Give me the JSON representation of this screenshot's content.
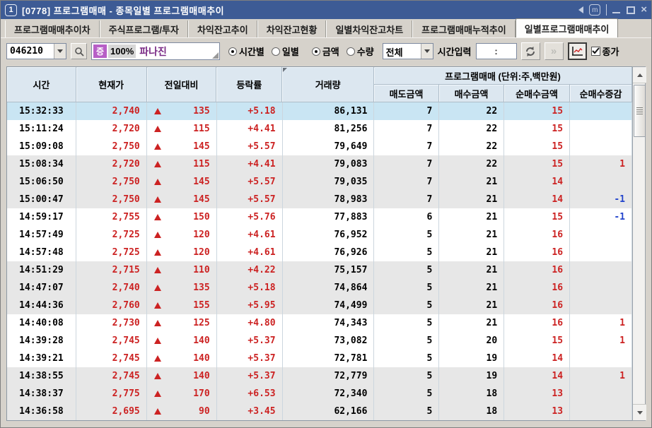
{
  "window": {
    "icon_label": "1",
    "title": "[0778] 프로그램매매 - 종목일별 프로그램매매추이"
  },
  "tabs": [
    {
      "label": "프로그램매매추이차",
      "active": false
    },
    {
      "label": "주식프로그램/투자",
      "active": false
    },
    {
      "label": "차익잔고추이",
      "active": false
    },
    {
      "label": "차익잔고현황",
      "active": false
    },
    {
      "label": "일별차익잔고차트",
      "active": false
    },
    {
      "label": "프로그램매매누적추이",
      "active": false
    },
    {
      "label": "일별프로그램매매추이",
      "active": true
    }
  ],
  "toolbar": {
    "stock_code": "046210",
    "warning_badge": "증",
    "margin_rate": "100%",
    "stock_name": "파나진",
    "radio_timely": "시간별",
    "radio_daily": "일별",
    "radio_amount": "금액",
    "radio_quantity": "수량",
    "market_select": "전체",
    "time_input_label": "시간입력",
    "time_input_value": ":",
    "close_checkbox_label": "종가"
  },
  "table": {
    "group_header": "프로그램매매 (단위:주,백만원)",
    "headers": {
      "time": "시간",
      "price": "현재가",
      "change": "전일대비",
      "rate": "등락률",
      "volume": "거래량",
      "sell": "매도금액",
      "buy": "매수금액",
      "net": "순매수금액",
      "net_change": "순매수증감"
    },
    "rows": [
      {
        "time": "15:32:33",
        "price": "2,740",
        "change": "135",
        "rate": "+5.18",
        "volume": "86,131",
        "sell": "7",
        "buy": "22",
        "net": "15",
        "net_change": "",
        "selected": true
      },
      {
        "time": "15:11:24",
        "price": "2,720",
        "change": "115",
        "rate": "+4.41",
        "volume": "81,256",
        "sell": "7",
        "buy": "22",
        "net": "15",
        "net_change": ""
      },
      {
        "time": "15:09:08",
        "price": "2,750",
        "change": "145",
        "rate": "+5.57",
        "volume": "79,649",
        "sell": "7",
        "buy": "22",
        "net": "15",
        "net_change": ""
      },
      {
        "time": "15:08:34",
        "price": "2,720",
        "change": "115",
        "rate": "+4.41",
        "volume": "79,083",
        "sell": "7",
        "buy": "22",
        "net": "15",
        "net_change": "1"
      },
      {
        "time": "15:06:50",
        "price": "2,750",
        "change": "145",
        "rate": "+5.57",
        "volume": "79,035",
        "sell": "7",
        "buy": "21",
        "net": "14",
        "net_change": ""
      },
      {
        "time": "15:00:47",
        "price": "2,750",
        "change": "145",
        "rate": "+5.57",
        "volume": "78,983",
        "sell": "7",
        "buy": "21",
        "net": "14",
        "net_change": "-1"
      },
      {
        "time": "14:59:17",
        "price": "2,755",
        "change": "150",
        "rate": "+5.76",
        "volume": "77,883",
        "sell": "6",
        "buy": "21",
        "net": "15",
        "net_change": "-1"
      },
      {
        "time": "14:57:49",
        "price": "2,725",
        "change": "120",
        "rate": "+4.61",
        "volume": "76,952",
        "sell": "5",
        "buy": "21",
        "net": "16",
        "net_change": ""
      },
      {
        "time": "14:57:48",
        "price": "2,725",
        "change": "120",
        "rate": "+4.61",
        "volume": "76,926",
        "sell": "5",
        "buy": "21",
        "net": "16",
        "net_change": ""
      },
      {
        "time": "14:51:29",
        "price": "2,715",
        "change": "110",
        "rate": "+4.22",
        "volume": "75,157",
        "sell": "5",
        "buy": "21",
        "net": "16",
        "net_change": ""
      },
      {
        "time": "14:47:07",
        "price": "2,740",
        "change": "135",
        "rate": "+5.18",
        "volume": "74,864",
        "sell": "5",
        "buy": "21",
        "net": "16",
        "net_change": ""
      },
      {
        "time": "14:44:36",
        "price": "2,760",
        "change": "155",
        "rate": "+5.95",
        "volume": "74,499",
        "sell": "5",
        "buy": "21",
        "net": "16",
        "net_change": ""
      },
      {
        "time": "14:40:08",
        "price": "2,730",
        "change": "125",
        "rate": "+4.80",
        "volume": "74,343",
        "sell": "5",
        "buy": "21",
        "net": "16",
        "net_change": "1"
      },
      {
        "time": "14:39:28",
        "price": "2,745",
        "change": "140",
        "rate": "+5.37",
        "volume": "73,082",
        "sell": "5",
        "buy": "20",
        "net": "15",
        "net_change": "1"
      },
      {
        "time": "14:39:21",
        "price": "2,745",
        "change": "140",
        "rate": "+5.37",
        "volume": "72,781",
        "sell": "5",
        "buy": "19",
        "net": "14",
        "net_change": ""
      },
      {
        "time": "14:38:55",
        "price": "2,745",
        "change": "140",
        "rate": "+5.37",
        "volume": "72,779",
        "sell": "5",
        "buy": "19",
        "net": "14",
        "net_change": "1"
      },
      {
        "time": "14:38:37",
        "price": "2,775",
        "change": "170",
        "rate": "+6.53",
        "volume": "72,340",
        "sell": "5",
        "buy": "18",
        "net": "13",
        "net_change": ""
      },
      {
        "time": "14:36:58",
        "price": "2,695",
        "change": "90",
        "rate": "+3.45",
        "volume": "62,166",
        "sell": "5",
        "buy": "18",
        "net": "13",
        "net_change": ""
      }
    ]
  },
  "colors": {
    "up": "#cc2222",
    "down": "#2244cc",
    "titlebar": "#3d5b95",
    "selected_row": "#c9e5f3"
  }
}
